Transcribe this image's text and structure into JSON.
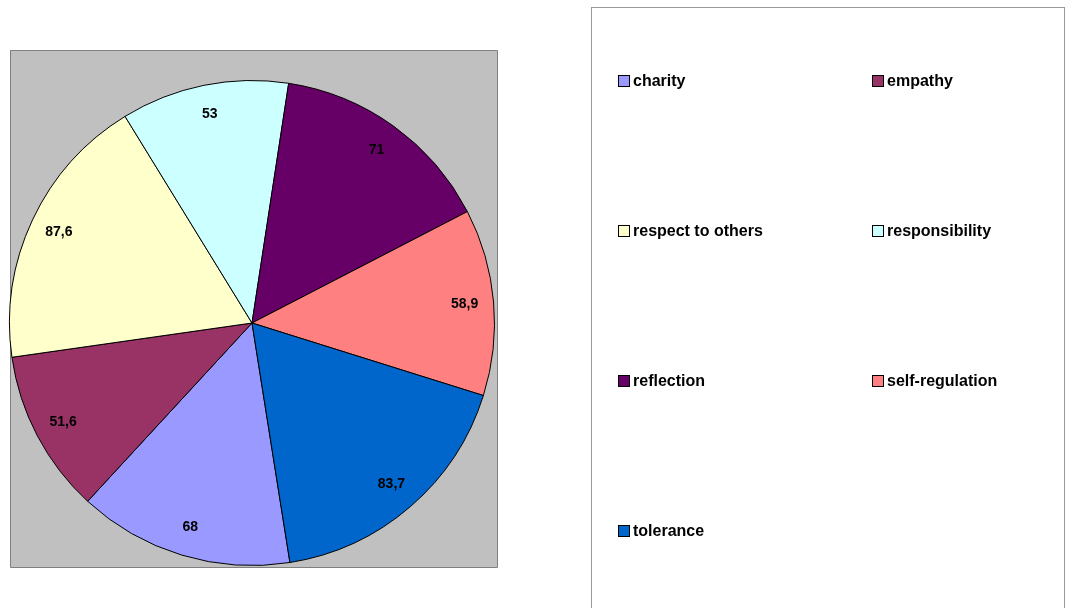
{
  "chart_data": {
    "type": "pie",
    "categories": [
      "charity",
      "empathy",
      "respect to others",
      "responsibility",
      "reflection",
      "self-regulation",
      "tolerance"
    ],
    "values": [
      68,
      51.6,
      87.6,
      53,
      71,
      58.9,
      83.7
    ],
    "value_labels": [
      "68",
      "51,6",
      "87,6",
      "53",
      "71",
      "58,9",
      "83,7"
    ],
    "colors": [
      "#9999ff",
      "#993366",
      "#ffffcc",
      "#ccffff",
      "#660066",
      "#ff8080",
      "#0066cc"
    ],
    "legend": "right"
  }
}
